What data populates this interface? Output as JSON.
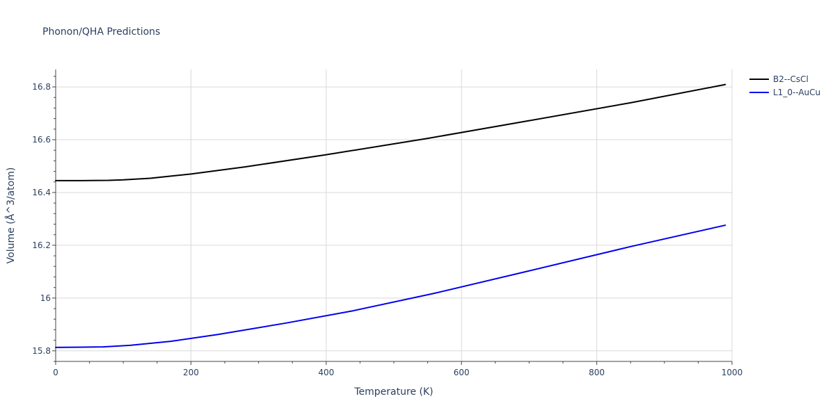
{
  "chart_data": {
    "type": "line",
    "title": "Phonon/QHA Predictions",
    "xlabel": "Temperature (K)",
    "ylabel": "Volume (Å^3/atom)",
    "xlim": [
      0,
      1000
    ],
    "ylim": [
      15.76,
      16.866
    ],
    "x_ticks": [
      0,
      200,
      400,
      600,
      800,
      1000
    ],
    "x_tick_labels": [
      "0",
      "200",
      "400",
      "600",
      "800",
      "1000"
    ],
    "y_ticks": [
      15.8,
      16.0,
      16.2,
      16.4,
      16.6,
      16.8
    ],
    "y_tick_labels": [
      "15.8",
      "16",
      "16.2",
      "16.4",
      "16.6",
      "16.8"
    ],
    "grid": true,
    "legend_position": "top-right",
    "series": [
      {
        "name": "B2--CsCl",
        "color": "#000000",
        "x": [
          0,
          40,
          78,
          100,
          140,
          200,
          280,
          400,
          550,
          700,
          850,
          990
        ],
        "y": [
          16.445,
          16.445,
          16.446,
          16.448,
          16.454,
          16.47,
          16.497,
          16.543,
          16.605,
          16.672,
          16.74,
          16.809
        ]
      },
      {
        "name": "L1_0--AuCu",
        "color": "#0000ee",
        "x": [
          0,
          40,
          70,
          110,
          170,
          240,
          340,
          440,
          560,
          700,
          850,
          990
        ],
        "y": [
          15.813,
          15.814,
          15.815,
          15.821,
          15.836,
          15.862,
          15.905,
          15.952,
          16.018,
          16.103,
          16.195,
          16.276
        ]
      }
    ]
  }
}
